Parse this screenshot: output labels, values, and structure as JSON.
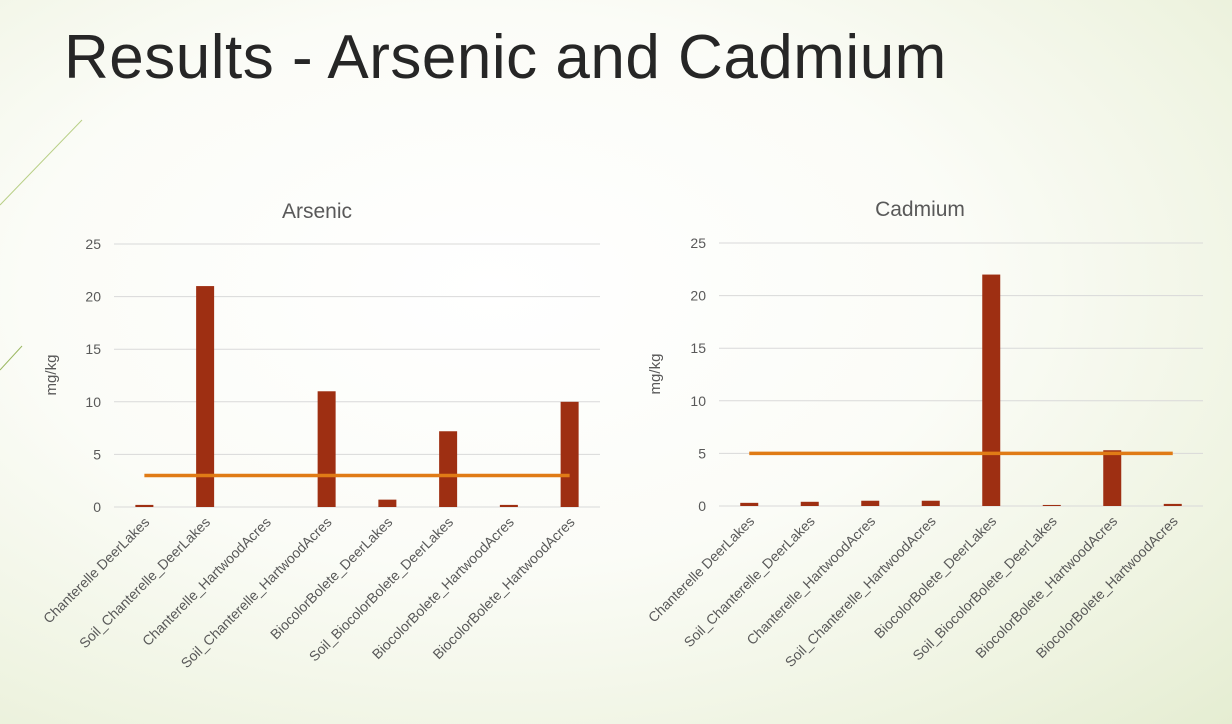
{
  "slide": {
    "title": "Results - Arsenic and Cadmium"
  },
  "colors": {
    "bar": "#9e2f12",
    "threshold": "#e07b16",
    "gridline": "#d9d9d9",
    "text": "#595959"
  },
  "chart_data": [
    {
      "type": "bar",
      "title": "Arsenic",
      "xlabel": "",
      "ylabel": "mg/kg",
      "ylim": [
        0,
        25
      ],
      "yticks": [
        0,
        5,
        10,
        15,
        20,
        25
      ],
      "grid": true,
      "legend": "none",
      "categories": [
        "Chanterelle DeerLakes",
        "Soil_Chanterelle_DeerLakes",
        "Chanterelle_HartwoodAcres",
        "Soil_Chanterelle_HartwoodAcres",
        "BiocolorBolete_DeerLakes",
        "Soil_BiocolorBolete_DeerLakes",
        "BiocolorBolete_HartwoodAcres",
        "BiocolorBolete_HartwoodAcres"
      ],
      "values": [
        0.2,
        21,
        0,
        11,
        0.7,
        7.2,
        0.2,
        10
      ],
      "threshold": 3
    },
    {
      "type": "bar",
      "title": "Cadmium",
      "xlabel": "",
      "ylabel": "mg/kg",
      "ylim": [
        0,
        25
      ],
      "yticks": [
        0,
        5,
        10,
        15,
        20,
        25
      ],
      "grid": true,
      "legend": "none",
      "categories": [
        "Chanterelle DeerLakes",
        "Soil_Chanterelle_DeerLakes",
        "Chanterelle_HartwoodAcres",
        "Soil_Chanterelle_HartwoodAcres",
        "BiocolorBolete_DeerLakes",
        "Soil_BiocolorBolete_DeerLakes",
        "BiocolorBolete_HartwoodAcres",
        "BiocolorBolete_HartwoodAcres"
      ],
      "values": [
        0.3,
        0.4,
        0.5,
        0.5,
        22,
        0.1,
        5.3,
        0.2
      ],
      "threshold": 5
    }
  ]
}
